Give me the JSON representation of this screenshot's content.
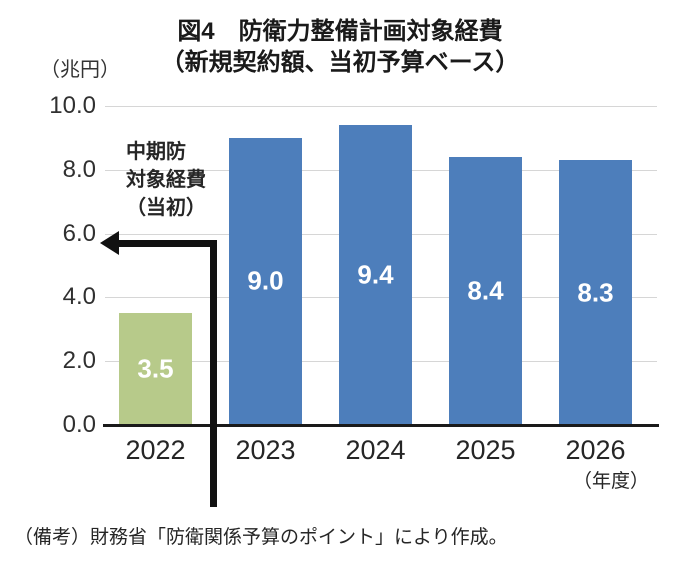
{
  "title": {
    "line1": "図4　防衛力整備計画対象経費",
    "line2": "（新規契約額、当初予算ベース）"
  },
  "y_axis": {
    "unit_label": "（兆円）"
  },
  "x_axis": {
    "suffix_label": "（年度）"
  },
  "annotation": {
    "lines": [
      "中期防",
      "対象経費",
      "（当初）"
    ],
    "arrow_points_to_value": 5.6
  },
  "note": "（備考）財務省「防衛関係予算のポイント」により作成。",
  "chart_data": {
    "type": "bar",
    "title": "図4　防衛力整備計画対象経費（新規契約額、当初予算ベース）",
    "categories": [
      "2022",
      "2023",
      "2024",
      "2025",
      "2026"
    ],
    "values": [
      3.5,
      9.0,
      9.4,
      8.4,
      8.3
    ],
    "data_labels": [
      "3.5",
      "9.0",
      "9.4",
      "8.4",
      "8.3"
    ],
    "bar_colors": [
      "#b7ca8a",
      "#4d7ebb",
      "#4d7ebb",
      "#4d7ebb",
      "#4d7ebb"
    ],
    "ylabel": "（兆円）",
    "xlabel": "（年度）",
    "ylim": [
      0,
      10
    ],
    "yticks": [
      0.0,
      2.0,
      4.0,
      6.0,
      8.0,
      10.0
    ],
    "ytick_labels": [
      "0.0",
      "2.0",
      "4.0",
      "6.0",
      "8.0",
      "10.0"
    ],
    "grid": true,
    "legend": false,
    "annotation_text": "中期防対象経費（当初）",
    "note": "（備考）財務省「防衛関係予算のポイント」により作成。"
  }
}
